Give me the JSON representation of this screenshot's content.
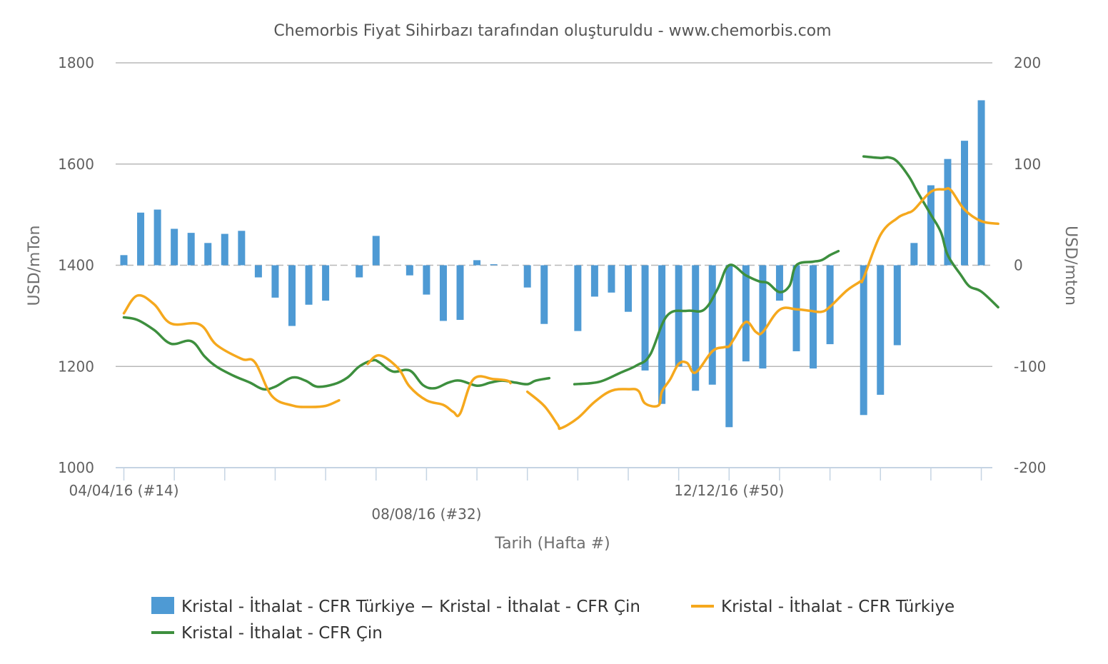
{
  "chart_data": {
    "type": "bar",
    "title": "Chemorbis Fiyat Sihirbazı tarafından oluşturuldu - www.chemorbis.com",
    "xlabel": "Tarih (Hafta #)",
    "ylabel_left": "USD/mTon",
    "ylabel_right": "USD/mton",
    "ylim_left": [
      1000,
      1800
    ],
    "ylim_right": [
      -200,
      200
    ],
    "yticks_left": [
      "1800",
      "1600",
      "1400",
      "1200",
      "1000"
    ],
    "yticks_right": [
      "200",
      "100",
      "0",
      "-100",
      "-200"
    ],
    "x_labels": [
      {
        "week": 14,
        "text": "04/04/16 (#14)",
        "row": 1
      },
      {
        "week": 32,
        "text": "08/08/16 (#32)",
        "row": 2
      },
      {
        "week": 50,
        "text": "12/12/16 (#50)",
        "row": 1
      }
    ],
    "weeks": [
      14,
      15,
      16,
      17,
      18,
      19,
      20,
      21,
      22,
      23,
      24,
      25,
      26,
      27,
      28,
      29,
      30,
      31,
      32,
      33,
      34,
      35,
      36,
      37,
      38,
      39,
      40,
      41,
      42,
      43,
      44,
      45,
      46,
      47,
      48,
      49,
      50,
      51,
      52,
      53,
      54,
      55,
      56,
      57,
      58,
      59,
      60,
      61,
      62,
      63,
      64,
      65,
      66
    ],
    "grid": true,
    "legend_position": "bottom",
    "series": [
      {
        "name": "Kristal - İthalat - CFR Türkiye − Kristal - İthalat - CFR Çin",
        "type": "bar",
        "axis": "right",
        "color": "#4e9ad4",
        "values": [
          10,
          52,
          55,
          36,
          32,
          22,
          31,
          34,
          -12,
          -32,
          -60,
          -39,
          -35,
          null,
          -12,
          29,
          null,
          -10,
          -29,
          -55,
          -54,
          5,
          1,
          null,
          -22,
          -58,
          null,
          -65,
          -31,
          -27,
          -46,
          -104,
          -137,
          -100,
          -124,
          -118,
          -160,
          -95,
          -102,
          -35,
          -85,
          -102,
          -78,
          null,
          -148,
          -128,
          -79,
          22,
          79,
          105,
          123,
          163,
          null
        ],
        "value_x": [
          14,
          15,
          16,
          17,
          18,
          19,
          20,
          21,
          22,
          23,
          24,
          25,
          26,
          27,
          28,
          29,
          30,
          31,
          32,
          33,
          34,
          35,
          36,
          37,
          38,
          39,
          40,
          41,
          42,
          43,
          44,
          45,
          46,
          47,
          48,
          49,
          50,
          51,
          52,
          53,
          54,
          55,
          56,
          57,
          58,
          59,
          60,
          61,
          62,
          63,
          64,
          65,
          66
        ]
      },
      {
        "name": "Kristal - İthalat - CFR Türkiye",
        "type": "line",
        "axis": "left",
        "color": "#f5a81d",
        "segments": [
          {
            "x": [
              14,
              14.8,
              15.8,
              16.8,
              18.5,
              19.5,
              21,
              21.8,
              22.8,
              24,
              25,
              26,
              26.8
            ],
            "y": [
              1305,
              1340,
              1323,
              1285,
              1283,
              1243,
              1215,
              1208,
              1142,
              1123,
              1120,
              1122,
              1133
            ]
          },
          {
            "x": [
              28.5,
              29.2,
              30.3,
              31,
              32,
              33,
              33.6,
              34,
              34.8,
              36,
              36.8,
              37
            ],
            "y": [
              1205,
              1222,
              1197,
              1160,
              1133,
              1124,
              1110,
              1107,
              1175,
              1175,
              1172,
              1167
            ]
          },
          {
            "x": [
              38,
              39,
              39.8,
              40,
              41,
              42,
              43,
              44,
              44.6,
              45,
              45.8,
              46,
              46.5,
              47,
              47.5,
              48,
              49,
              49.7,
              50,
              50.3,
              51,
              51.6,
              52,
              53,
              54,
              54.8,
              55.5,
              56,
              57,
              57.8,
              58,
              59,
              60,
              60.6,
              61,
              62,
              62.8,
              63.2,
              64,
              65,
              66
            ],
            "y": [
              1150,
              1122,
              1085,
              1078,
              1098,
              1130,
              1152,
              1155,
              1152,
              1127,
              1123,
              1150,
              1175,
              1205,
              1207,
              1188,
              1230,
              1238,
              1240,
              1255,
              1288,
              1268,
              1268,
              1312,
              1313,
              1310,
              1308,
              1318,
              1350,
              1368,
              1375,
              1460,
              1493,
              1503,
              1510,
              1545,
              1550,
              1548,
              1510,
              1487,
              1482
            ]
          }
        ]
      },
      {
        "name": "Kristal - İthalat - CFR Çin",
        "type": "line",
        "axis": "left",
        "color": "#3d8f3e",
        "segments": [
          {
            "x": [
              14,
              14.8,
              15.8,
              16.8,
              18,
              18.8,
              19.5,
              20.5,
              21.5,
              22.3,
              23,
              24,
              24.8,
              25.5,
              26.5,
              27.3,
              28,
              28.8,
              29.2,
              30,
              31,
              31.8,
              32.5,
              33.3,
              34,
              35,
              35.8,
              36.5,
              37.3,
              38,
              38.5,
              39.3
            ],
            "y": [
              1297,
              1292,
              1272,
              1245,
              1250,
              1220,
              1200,
              1182,
              1168,
              1155,
              1160,
              1178,
              1172,
              1160,
              1165,
              1178,
              1200,
              1212,
              1208,
              1190,
              1192,
              1163,
              1157,
              1168,
              1172,
              1162,
              1168,
              1172,
              1168,
              1165,
              1172,
              1177
            ]
          },
          {
            "x": [
              40.8,
              41.8,
              42.5,
              43.5,
              44.5,
              45.3,
              46.3,
              47.5,
              48.5,
              49.3,
              50,
              51,
              51.8,
              52.3,
              53,
              53.6,
              54,
              55,
              55.5,
              56,
              56.5
            ],
            "y": [
              1165,
              1167,
              1172,
              1187,
              1202,
              1223,
              1300,
              1310,
              1312,
              1352,
              1400,
              1380,
              1368,
              1365,
              1347,
              1360,
              1400,
              1407,
              1410,
              1420,
              1428
            ]
          },
          {
            "x": [
              58,
              59,
              59.5,
              60,
              60.7,
              61.2,
              62,
              62.6,
              63,
              63.8,
              64.3,
              65,
              66
            ],
            "y": [
              1615,
              1612,
              1613,
              1605,
              1575,
              1545,
              1500,
              1465,
              1420,
              1380,
              1358,
              1348,
              1317
            ]
          }
        ]
      }
    ]
  }
}
